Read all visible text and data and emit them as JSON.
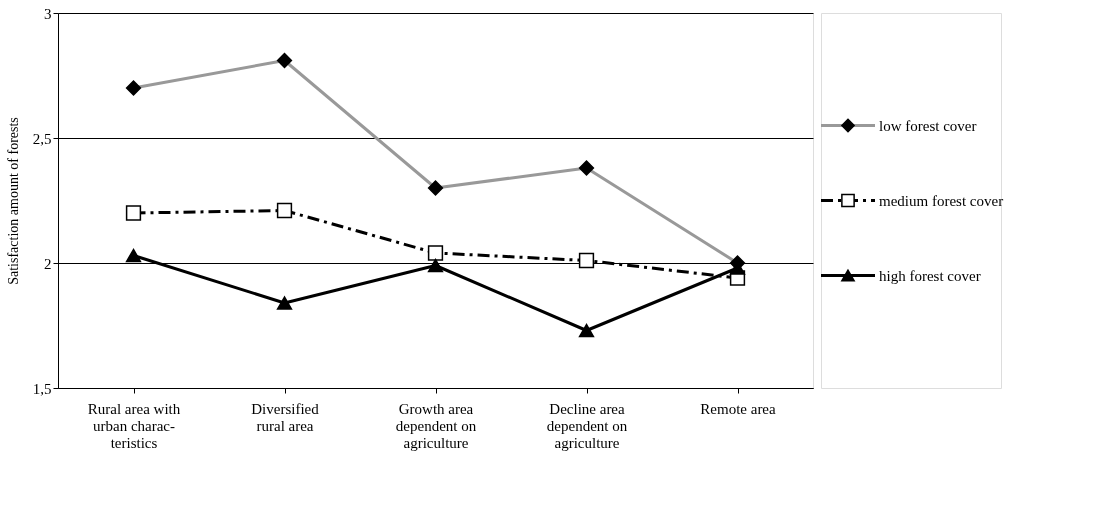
{
  "chart_data": {
    "type": "line",
    "ylabel": "Satisfaction amount of forests",
    "categories": [
      "Rural area with\nurban charac-\nteristics",
      "Diversified\nrural area",
      "Growth area\ndependent on\nagriculture",
      "Decline area\ndependent on\nagriculture",
      "Remote area"
    ],
    "series": [
      {
        "name": "low forest cover",
        "color": "#999999",
        "marker": "diamond",
        "line_style": "solid",
        "values": [
          2.7,
          2.81,
          2.3,
          2.38,
          2.0
        ]
      },
      {
        "name": "medium forest cover",
        "color": "#000000",
        "marker": "square",
        "line_style": "dashed",
        "values": [
          2.2,
          2.21,
          2.04,
          2.01,
          1.94
        ]
      },
      {
        "name": "high forest cover",
        "color": "#000000",
        "marker": "triangle",
        "line_style": "solid",
        "values": [
          2.03,
          1.84,
          1.99,
          1.73,
          1.98
        ]
      }
    ],
    "ylim": [
      1.5,
      3
    ],
    "yticks": [
      {
        "value": 1.5,
        "label": "1,5"
      },
      2,
      {
        "value": 2.5,
        "label": "2,5"
      },
      3
    ],
    "grid": "y",
    "legend": "right"
  }
}
